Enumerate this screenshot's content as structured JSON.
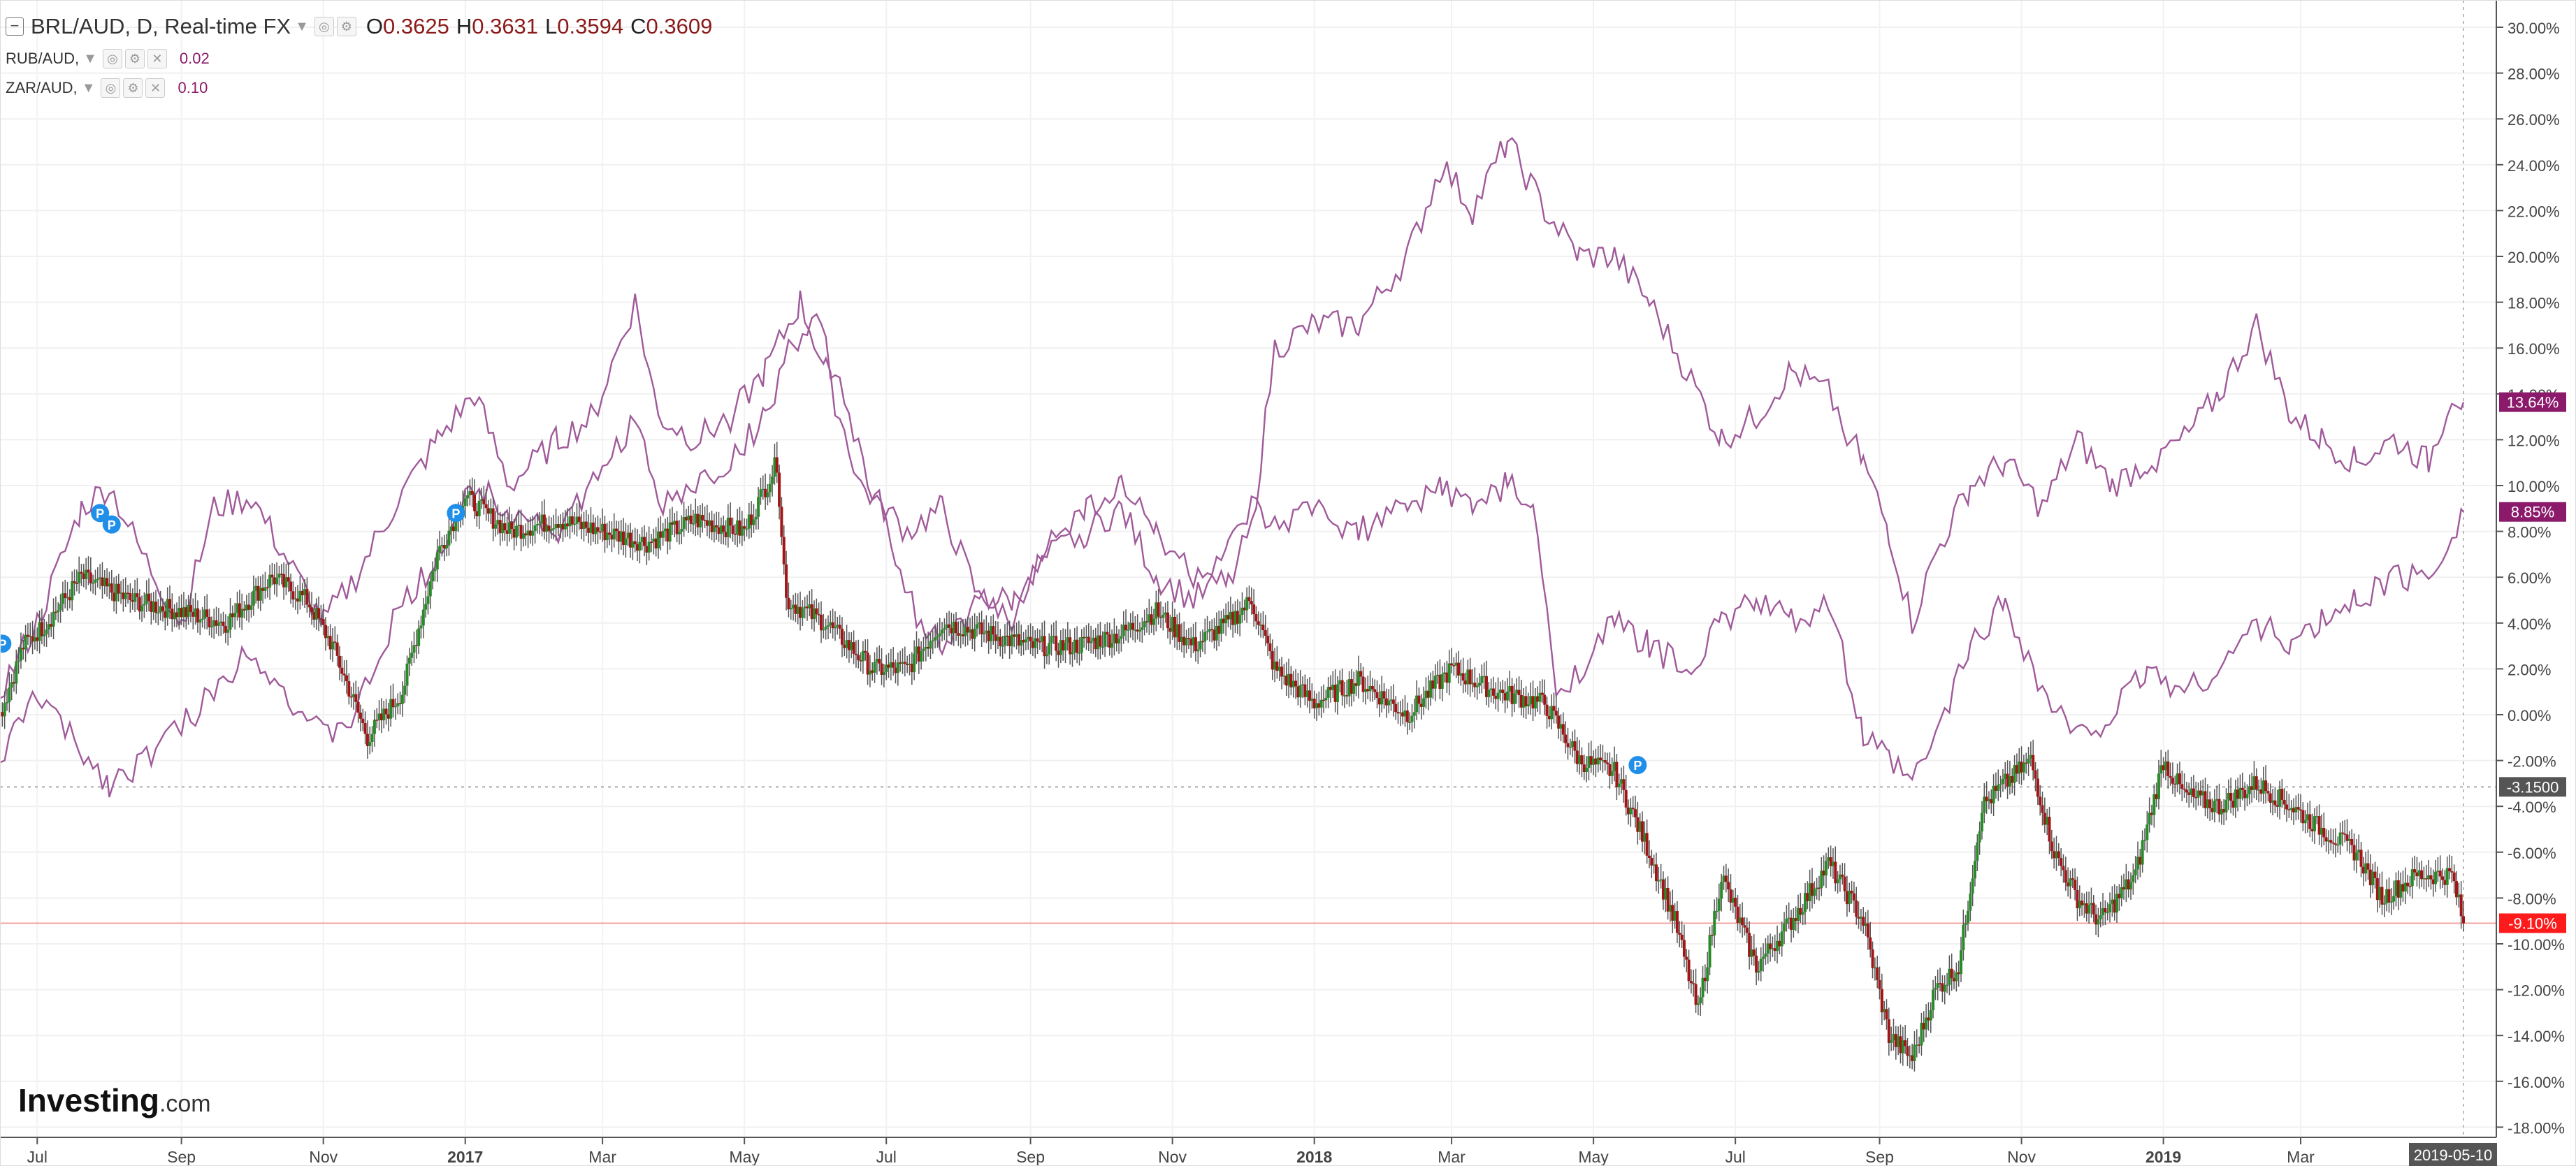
{
  "legend": {
    "main": {
      "symbol": "BRL/AUD, D, Real-time FX",
      "o": "0.3625",
      "h": "0.3631",
      "l": "0.3594",
      "c": "0.3609"
    },
    "rub": {
      "symbol": "RUB/AUD,",
      "value": "0.02"
    },
    "zar": {
      "symbol": "ZAR/AUD,",
      "value": "0.10"
    }
  },
  "logo": {
    "text": "Investing",
    "suffix": ".com"
  },
  "colors": {
    "up": "#2a8a2a",
    "down": "#a01515",
    "compare": "#a05a9a",
    "badge": "#8b1a6b",
    "last_badge": "#ff1b1b",
    "axis_text": "#444"
  },
  "chart_data": {
    "type": "line",
    "x_start": "2016-06-15",
    "x_end": "2019-05-10",
    "ylim": [
      -18,
      31
    ],
    "y_ticks": [
      "30.00%",
      "28.00%",
      "26.00%",
      "24.00%",
      "22.00%",
      "20.00%",
      "18.00%",
      "16.00%",
      "14.00%",
      "12.00%",
      "10.00%",
      "8.00%",
      "6.00%",
      "4.00%",
      "2.00%",
      "0.00%",
      "-2.00%",
      "-4.00%",
      "-6.00%",
      "-8.00%",
      "-10.00%",
      "-12.00%",
      "-14.00%",
      "-16.00%",
      "-18.00%"
    ],
    "x_ticks": [
      "Jul",
      "Sep",
      "Nov",
      "2017",
      "Mar",
      "May",
      "Jul",
      "Sep",
      "Nov",
      "2018",
      "Mar",
      "May",
      "Jul",
      "Sep",
      "Nov",
      "2019",
      "Mar"
    ],
    "x_tick_dates": [
      "2016-07-01",
      "2016-09-01",
      "2016-11-01",
      "2017-01-01",
      "2017-03-01",
      "2017-05-01",
      "2017-07-01",
      "2017-09-01",
      "2017-11-01",
      "2018-01-01",
      "2018-03-01",
      "2018-05-01",
      "2018-07-01",
      "2018-09-01",
      "2018-11-01",
      "2019-01-01",
      "2019-03-01"
    ],
    "last_date_label": "2019-05-10",
    "badges": {
      "rub": "13.64%",
      "zar": "8.85%",
      "ref": "-3.1500",
      "last": "-9.10%"
    },
    "badge_values": {
      "rub": 13.64,
      "zar": 8.85,
      "ref": -3.15,
      "last": -9.1
    },
    "series": [
      {
        "name": "BRL/AUD",
        "kind": "candles",
        "points": [
          [
            "2016-06-15",
            0
          ],
          [
            "2016-06-25",
            3
          ],
          [
            "2016-07-05",
            4
          ],
          [
            "2016-07-20",
            6
          ],
          [
            "2016-08-10",
            5
          ],
          [
            "2016-09-01",
            4.5
          ],
          [
            "2016-09-20",
            4
          ],
          [
            "2016-10-10",
            6
          ],
          [
            "2016-10-25",
            5
          ],
          [
            "2016-11-05",
            3
          ],
          [
            "2016-11-20",
            -1
          ],
          [
            "2016-12-05",
            1
          ],
          [
            "2016-12-20",
            7
          ],
          [
            "2017-01-01",
            9.5
          ],
          [
            "2017-01-20",
            8
          ],
          [
            "2017-02-10",
            8.5
          ],
          [
            "2017-03-01",
            8
          ],
          [
            "2017-03-20",
            7.5
          ],
          [
            "2017-04-10",
            8.5
          ],
          [
            "2017-05-01",
            8
          ],
          [
            "2017-05-15",
            11
          ],
          [
            "2017-05-19",
            5
          ],
          [
            "2017-06-05",
            4
          ],
          [
            "2017-06-25",
            2
          ],
          [
            "2017-07-10",
            2
          ],
          [
            "2017-07-25",
            4
          ],
          [
            "2017-08-15",
            3.5
          ],
          [
            "2017-09-01",
            3
          ],
          [
            "2017-09-20",
            3
          ],
          [
            "2017-10-10",
            3.5
          ],
          [
            "2017-10-25",
            4.5
          ],
          [
            "2017-11-10",
            3
          ],
          [
            "2017-11-25",
            4
          ],
          [
            "2017-12-05",
            5
          ],
          [
            "2017-12-15",
            2
          ],
          [
            "2018-01-01",
            0.5
          ],
          [
            "2018-01-20",
            1.5
          ],
          [
            "2018-02-10",
            0
          ],
          [
            "2018-03-01",
            2
          ],
          [
            "2018-03-20",
            1
          ],
          [
            "2018-04-10",
            0.5
          ],
          [
            "2018-04-25",
            -2
          ],
          [
            "2018-05-10",
            -2.5
          ],
          [
            "2018-05-25",
            -6
          ],
          [
            "2018-06-05",
            -9
          ],
          [
            "2018-06-15",
            -13
          ],
          [
            "2018-06-25",
            -7
          ],
          [
            "2018-07-10",
            -11
          ],
          [
            "2018-07-25",
            -9
          ],
          [
            "2018-08-10",
            -6.5
          ],
          [
            "2018-08-25",
            -9
          ],
          [
            "2018-09-05",
            -14
          ],
          [
            "2018-09-15",
            -15
          ],
          [
            "2018-09-25",
            -12
          ],
          [
            "2018-10-05",
            -11
          ],
          [
            "2018-10-15",
            -4
          ],
          [
            "2018-10-25",
            -3
          ],
          [
            "2018-11-05",
            -2
          ],
          [
            "2018-11-15",
            -6
          ],
          [
            "2018-11-25",
            -8
          ],
          [
            "2018-12-05",
            -9
          ],
          [
            "2018-12-20",
            -7
          ],
          [
            "2019-01-01",
            -2
          ],
          [
            "2019-01-10",
            -3.5
          ],
          [
            "2019-01-25",
            -4
          ],
          [
            "2019-02-10",
            -3
          ],
          [
            "2019-02-25",
            -4
          ],
          [
            "2019-03-10",
            -5
          ],
          [
            "2019-03-25",
            -6
          ],
          [
            "2019-04-05",
            -8
          ],
          [
            "2019-04-20",
            -7
          ],
          [
            "2019-05-05",
            -7
          ],
          [
            "2019-05-10",
            -9.1
          ]
        ]
      },
      {
        "name": "RUB/AUD",
        "kind": "line",
        "points": [
          [
            "2016-06-15",
            1
          ],
          [
            "2016-07-01",
            4
          ],
          [
            "2016-07-20",
            9
          ],
          [
            "2016-08-01",
            10
          ],
          [
            "2016-08-15",
            7
          ],
          [
            "2016-09-01",
            4
          ],
          [
            "2016-09-15",
            9
          ],
          [
            "2016-10-01",
            9.5
          ],
          [
            "2016-10-15",
            7
          ],
          [
            "2016-11-01",
            4
          ],
          [
            "2016-11-15",
            6
          ],
          [
            "2016-12-01",
            9
          ],
          [
            "2016-12-20",
            12
          ],
          [
            "2017-01-05",
            14
          ],
          [
            "2017-01-20",
            10
          ],
          [
            "2017-02-10",
            12
          ],
          [
            "2017-02-25",
            13
          ],
          [
            "2017-03-15",
            18
          ],
          [
            "2017-03-25",
            13
          ],
          [
            "2017-04-10",
            12
          ],
          [
            "2017-04-25",
            13
          ],
          [
            "2017-05-10",
            15
          ],
          [
            "2017-05-25",
            18
          ],
          [
            "2017-06-05",
            15
          ],
          [
            "2017-06-20",
            10
          ],
          [
            "2017-07-10",
            8
          ],
          [
            "2017-07-25",
            9
          ],
          [
            "2017-08-10",
            5
          ],
          [
            "2017-08-25",
            5
          ],
          [
            "2017-09-10",
            7
          ],
          [
            "2017-09-25",
            8
          ],
          [
            "2017-10-10",
            9
          ],
          [
            "2017-10-25",
            6
          ],
          [
            "2017-11-10",
            5
          ],
          [
            "2017-11-25",
            6
          ],
          [
            "2017-12-05",
            8
          ],
          [
            "2017-12-15",
            16
          ],
          [
            "2018-01-01",
            17
          ],
          [
            "2018-01-20",
            17
          ],
          [
            "2018-02-10",
            20
          ],
          [
            "2018-02-25",
            24
          ],
          [
            "2018-03-10",
            22
          ],
          [
            "2018-03-25",
            25
          ],
          [
            "2018-04-10",
            22
          ],
          [
            "2018-04-25",
            20
          ],
          [
            "2018-05-10",
            20
          ],
          [
            "2018-05-25",
            18
          ],
          [
            "2018-06-10",
            15
          ],
          [
            "2018-06-25",
            12
          ],
          [
            "2018-07-10",
            13
          ],
          [
            "2018-07-25",
            15
          ],
          [
            "2018-08-10",
            14
          ],
          [
            "2018-08-25",
            11
          ],
          [
            "2018-09-05",
            8
          ],
          [
            "2018-09-15",
            4
          ],
          [
            "2018-09-25",
            7
          ],
          [
            "2018-10-10",
            10
          ],
          [
            "2018-10-25",
            11
          ],
          [
            "2018-11-10",
            9
          ],
          [
            "2018-11-25",
            12
          ],
          [
            "2018-12-10",
            10
          ],
          [
            "2018-12-25",
            11
          ],
          [
            "2019-01-10",
            12
          ],
          [
            "2019-01-25",
            14
          ],
          [
            "2019-02-10",
            17
          ],
          [
            "2019-02-25",
            13
          ],
          [
            "2019-03-10",
            12
          ],
          [
            "2019-03-25",
            11
          ],
          [
            "2019-04-10",
            12
          ],
          [
            "2019-04-25",
            11
          ],
          [
            "2019-05-05",
            14
          ],
          [
            "2019-05-10",
            13.64
          ]
        ]
      },
      {
        "name": "ZAR/AUD",
        "kind": "line",
        "points": [
          [
            "2016-06-15",
            -2
          ],
          [
            "2016-07-01",
            1
          ],
          [
            "2016-07-15",
            -1
          ],
          [
            "2016-08-01",
            -3
          ],
          [
            "2016-08-15",
            -2
          ],
          [
            "2016-09-01",
            -0.5
          ],
          [
            "2016-09-15",
            1
          ],
          [
            "2016-10-01",
            3
          ],
          [
            "2016-10-15",
            1
          ],
          [
            "2016-11-01",
            -1
          ],
          [
            "2016-11-15",
            0
          ],
          [
            "2016-12-01",
            4
          ],
          [
            "2016-12-20",
            7
          ],
          [
            "2017-01-05",
            10
          ],
          [
            "2017-01-20",
            9
          ],
          [
            "2017-02-10",
            8
          ],
          [
            "2017-02-25",
            10
          ],
          [
            "2017-03-15",
            13
          ],
          [
            "2017-03-25",
            9
          ],
          [
            "2017-04-10",
            10
          ],
          [
            "2017-04-25",
            11
          ],
          [
            "2017-05-10",
            13
          ],
          [
            "2017-05-20",
            16
          ],
          [
            "2017-06-01",
            17
          ],
          [
            "2017-06-15",
            13
          ],
          [
            "2017-06-25",
            10
          ],
          [
            "2017-07-10",
            5
          ],
          [
            "2017-07-25",
            3
          ],
          [
            "2017-08-10",
            5
          ],
          [
            "2017-08-25",
            4
          ],
          [
            "2017-09-10",
            8
          ],
          [
            "2017-09-25",
            9
          ],
          [
            "2017-10-10",
            10
          ],
          [
            "2017-10-25",
            8
          ],
          [
            "2017-11-10",
            6
          ],
          [
            "2017-11-25",
            7
          ],
          [
            "2017-12-05",
            9
          ],
          [
            "2017-12-15",
            8
          ],
          [
            "2018-01-01",
            9
          ],
          [
            "2018-01-20",
            8
          ],
          [
            "2018-02-10",
            9
          ],
          [
            "2018-02-25",
            10
          ],
          [
            "2018-03-10",
            9
          ],
          [
            "2018-03-25",
            10
          ],
          [
            "2018-04-05",
            9
          ],
          [
            "2018-04-15",
            1
          ],
          [
            "2018-04-25",
            2
          ],
          [
            "2018-05-10",
            4
          ],
          [
            "2018-05-25",
            3
          ],
          [
            "2018-06-10",
            2
          ],
          [
            "2018-06-25",
            4
          ],
          [
            "2018-07-10",
            5
          ],
          [
            "2018-07-25",
            4
          ],
          [
            "2018-08-10",
            5
          ],
          [
            "2018-08-25",
            -1
          ],
          [
            "2018-09-05",
            -2
          ],
          [
            "2018-09-15",
            -3
          ],
          [
            "2018-09-25",
            -1
          ],
          [
            "2018-10-10",
            3
          ],
          [
            "2018-10-25",
            5
          ],
          [
            "2018-11-10",
            1
          ],
          [
            "2018-11-25",
            -1
          ],
          [
            "2018-12-10",
            0
          ],
          [
            "2018-12-25",
            2
          ],
          [
            "2019-01-10",
            1
          ],
          [
            "2019-01-25",
            2
          ],
          [
            "2019-02-10",
            4
          ],
          [
            "2019-02-25",
            3
          ],
          [
            "2019-03-10",
            4
          ],
          [
            "2019-03-25",
            5
          ],
          [
            "2019-04-10",
            6
          ],
          [
            "2019-04-25",
            6
          ],
          [
            "2019-05-05",
            8
          ],
          [
            "2019-05-10",
            8.85
          ]
        ]
      }
    ]
  }
}
